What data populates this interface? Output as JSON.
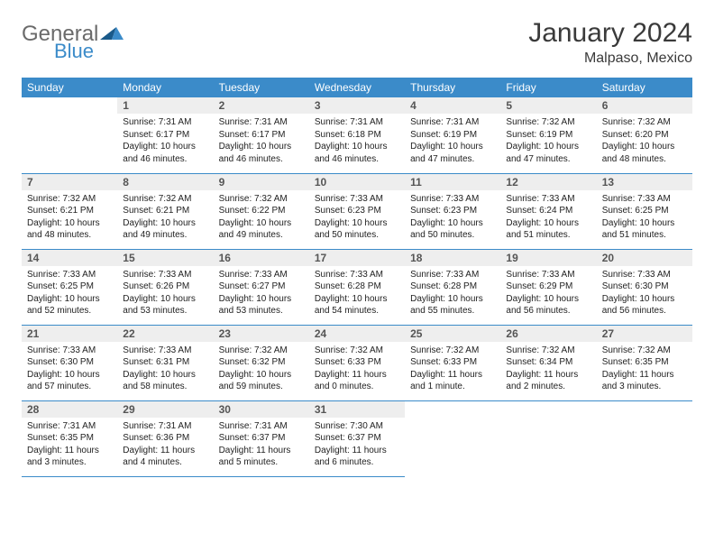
{
  "logo_part1": "General",
  "logo_part2": "Blue",
  "month_title": "January 2024",
  "location": "Malpaso, Mexico",
  "colors": {
    "header_bg": "#3b8bc9",
    "header_fg": "#ffffff",
    "daynum_bg": "#eeeeee",
    "border": "#3b8bc9"
  },
  "weekdays": [
    "Sunday",
    "Monday",
    "Tuesday",
    "Wednesday",
    "Thursday",
    "Friday",
    "Saturday"
  ],
  "weeks": [
    [
      null,
      {
        "n": "1",
        "sr": "7:31 AM",
        "ss": "6:17 PM",
        "dl": "10 hours and 46 minutes."
      },
      {
        "n": "2",
        "sr": "7:31 AM",
        "ss": "6:17 PM",
        "dl": "10 hours and 46 minutes."
      },
      {
        "n": "3",
        "sr": "7:31 AM",
        "ss": "6:18 PM",
        "dl": "10 hours and 46 minutes."
      },
      {
        "n": "4",
        "sr": "7:31 AM",
        "ss": "6:19 PM",
        "dl": "10 hours and 47 minutes."
      },
      {
        "n": "5",
        "sr": "7:32 AM",
        "ss": "6:19 PM",
        "dl": "10 hours and 47 minutes."
      },
      {
        "n": "6",
        "sr": "7:32 AM",
        "ss": "6:20 PM",
        "dl": "10 hours and 48 minutes."
      }
    ],
    [
      {
        "n": "7",
        "sr": "7:32 AM",
        "ss": "6:21 PM",
        "dl": "10 hours and 48 minutes."
      },
      {
        "n": "8",
        "sr": "7:32 AM",
        "ss": "6:21 PM",
        "dl": "10 hours and 49 minutes."
      },
      {
        "n": "9",
        "sr": "7:32 AM",
        "ss": "6:22 PM",
        "dl": "10 hours and 49 minutes."
      },
      {
        "n": "10",
        "sr": "7:33 AM",
        "ss": "6:23 PM",
        "dl": "10 hours and 50 minutes."
      },
      {
        "n": "11",
        "sr": "7:33 AM",
        "ss": "6:23 PM",
        "dl": "10 hours and 50 minutes."
      },
      {
        "n": "12",
        "sr": "7:33 AM",
        "ss": "6:24 PM",
        "dl": "10 hours and 51 minutes."
      },
      {
        "n": "13",
        "sr": "7:33 AM",
        "ss": "6:25 PM",
        "dl": "10 hours and 51 minutes."
      }
    ],
    [
      {
        "n": "14",
        "sr": "7:33 AM",
        "ss": "6:25 PM",
        "dl": "10 hours and 52 minutes."
      },
      {
        "n": "15",
        "sr": "7:33 AM",
        "ss": "6:26 PM",
        "dl": "10 hours and 53 minutes."
      },
      {
        "n": "16",
        "sr": "7:33 AM",
        "ss": "6:27 PM",
        "dl": "10 hours and 53 minutes."
      },
      {
        "n": "17",
        "sr": "7:33 AM",
        "ss": "6:28 PM",
        "dl": "10 hours and 54 minutes."
      },
      {
        "n": "18",
        "sr": "7:33 AM",
        "ss": "6:28 PM",
        "dl": "10 hours and 55 minutes."
      },
      {
        "n": "19",
        "sr": "7:33 AM",
        "ss": "6:29 PM",
        "dl": "10 hours and 56 minutes."
      },
      {
        "n": "20",
        "sr": "7:33 AM",
        "ss": "6:30 PM",
        "dl": "10 hours and 56 minutes."
      }
    ],
    [
      {
        "n": "21",
        "sr": "7:33 AM",
        "ss": "6:30 PM",
        "dl": "10 hours and 57 minutes."
      },
      {
        "n": "22",
        "sr": "7:33 AM",
        "ss": "6:31 PM",
        "dl": "10 hours and 58 minutes."
      },
      {
        "n": "23",
        "sr": "7:32 AM",
        "ss": "6:32 PM",
        "dl": "10 hours and 59 minutes."
      },
      {
        "n": "24",
        "sr": "7:32 AM",
        "ss": "6:33 PM",
        "dl": "11 hours and 0 minutes."
      },
      {
        "n": "25",
        "sr": "7:32 AM",
        "ss": "6:33 PM",
        "dl": "11 hours and 1 minute."
      },
      {
        "n": "26",
        "sr": "7:32 AM",
        "ss": "6:34 PM",
        "dl": "11 hours and 2 minutes."
      },
      {
        "n": "27",
        "sr": "7:32 AM",
        "ss": "6:35 PM",
        "dl": "11 hours and 3 minutes."
      }
    ],
    [
      {
        "n": "28",
        "sr": "7:31 AM",
        "ss": "6:35 PM",
        "dl": "11 hours and 3 minutes."
      },
      {
        "n": "29",
        "sr": "7:31 AM",
        "ss": "6:36 PM",
        "dl": "11 hours and 4 minutes."
      },
      {
        "n": "30",
        "sr": "7:31 AM",
        "ss": "6:37 PM",
        "dl": "11 hours and 5 minutes."
      },
      {
        "n": "31",
        "sr": "7:30 AM",
        "ss": "6:37 PM",
        "dl": "11 hours and 6 minutes."
      },
      null,
      null,
      null
    ]
  ],
  "labels": {
    "sunrise": "Sunrise: ",
    "sunset": "Sunset: ",
    "daylight": "Daylight: "
  }
}
